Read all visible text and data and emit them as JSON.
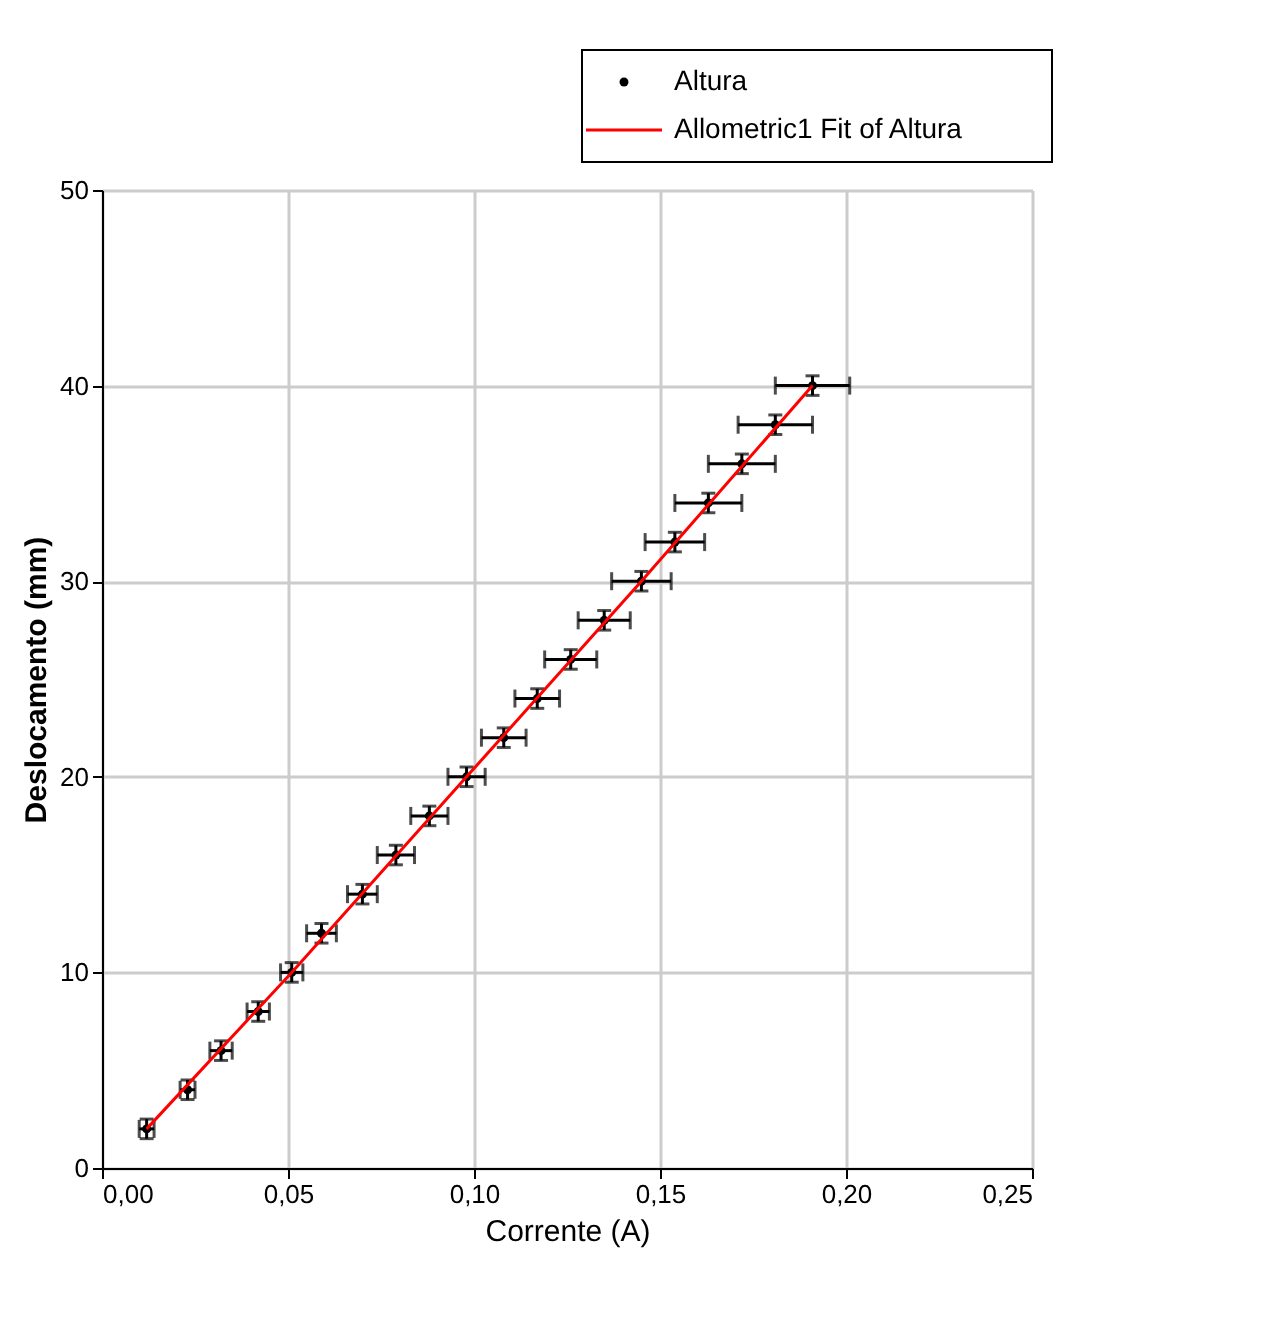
{
  "chart_data": {
    "type": "scatter",
    "xlabel": "Corrente (A)",
    "ylabel": "Deslocamento (mm)",
    "xlim": [
      0,
      0.25
    ],
    "ylim": [
      0,
      50
    ],
    "xticks": [
      {
        "value": 0,
        "label": "0,00"
      },
      {
        "value": 0.05,
        "label": "0,05"
      },
      {
        "value": 0.1,
        "label": "0,10"
      },
      {
        "value": 0.15,
        "label": "0,15"
      },
      {
        "value": 0.2,
        "label": "0,20"
      },
      {
        "value": 0.25,
        "label": "0,25"
      }
    ],
    "yticks": [
      0,
      10,
      20,
      30,
      40,
      50
    ],
    "grid": true,
    "legend": "top right",
    "series": [
      {
        "name": "Altura",
        "marker": "circle",
        "color": "#000000",
        "x": [
          0.012,
          0.023,
          0.032,
          0.042,
          0.051,
          0.059,
          0.07,
          0.079,
          0.088,
          0.098,
          0.108,
          0.117,
          0.126,
          0.135,
          0.145,
          0.154,
          0.163,
          0.172,
          0.181,
          0.191
        ],
        "values": [
          2,
          4,
          6,
          8,
          10,
          12,
          14,
          16,
          18,
          20,
          22,
          24,
          26,
          28,
          30,
          32,
          34,
          36,
          38,
          40
        ],
        "errors": [
          0.5,
          0.5,
          0.5,
          0.5,
          0.5,
          0.5,
          0.5,
          0.5,
          0.5,
          0.5,
          0.5,
          0.5,
          0.5,
          0.5,
          0.5,
          0.5,
          0.5,
          0.5,
          0.5,
          0.5
        ],
        "xerrors": [
          0.002,
          0.002,
          0.003,
          0.003,
          0.003,
          0.004,
          0.004,
          0.005,
          0.005,
          0.005,
          0.006,
          0.006,
          0.007,
          0.007,
          0.008,
          0.008,
          0.009,
          0.009,
          0.01,
          0.01
        ]
      },
      {
        "name": "Allometric1 Fit of Altura",
        "type": "line",
        "marker": "none",
        "color": "#ff0000",
        "line_style": "solid",
        "x": [
          0.012,
          0.051,
          0.098,
          0.145,
          0.191
        ],
        "values": [
          2,
          10,
          20,
          30,
          40
        ]
      }
    ]
  }
}
